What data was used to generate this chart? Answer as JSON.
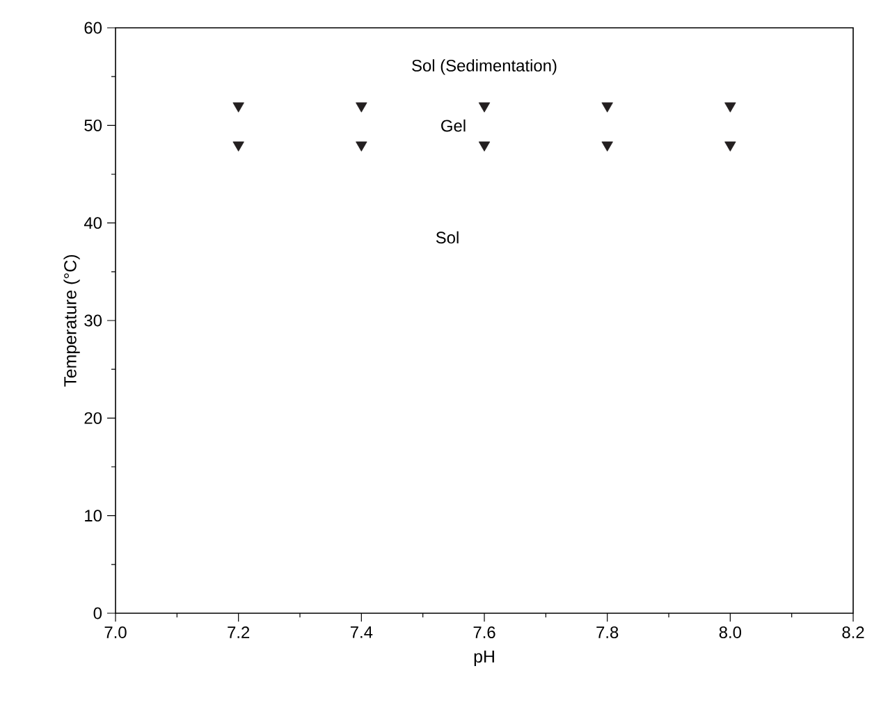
{
  "chart_data": {
    "type": "scatter",
    "xlabel": "pH",
    "ylabel": "Temperature (°C)",
    "marker": "triangle",
    "series": [
      {
        "color": "#231f20",
        "x": [
          7.2,
          7.4,
          7.6,
          7.8,
          8.0
        ],
        "values": [
          52,
          52,
          52,
          52,
          52
        ]
      },
      {
        "color": "#231f20",
        "x": [
          7.2,
          7.4,
          7.6,
          7.8,
          8.0
        ],
        "values": [
          48,
          48,
          48,
          48,
          48
        ]
      }
    ],
    "xlim": [
      7.0,
      8.2
    ],
    "xticks": [
      {
        "value": 7.0,
        "label": "7.0"
      },
      {
        "value": 7.1,
        "label": null
      },
      {
        "value": 7.2,
        "label": "7.2"
      },
      {
        "value": 7.3,
        "label": null
      },
      {
        "value": 7.4,
        "label": "7.4"
      },
      {
        "value": 7.5,
        "label": null
      },
      {
        "value": 7.6,
        "label": "7.6"
      },
      {
        "value": 7.7,
        "label": null
      },
      {
        "value": 7.8,
        "label": "7.8"
      },
      {
        "value": 7.9,
        "label": null
      },
      {
        "value": 8.0,
        "label": "8.0"
      },
      {
        "value": 8.1,
        "label": null
      },
      {
        "value": 8.2,
        "label": "8.2"
      }
    ],
    "ylim": [
      0,
      60
    ],
    "yticks": [
      0,
      {
        "value": 5,
        "label": null
      },
      10,
      {
        "value": 15,
        "label": null
      },
      20,
      {
        "value": 25,
        "label": null
      },
      30,
      {
        "value": 35,
        "label": null
      },
      40,
      {
        "value": 45,
        "label": null
      },
      50,
      {
        "value": 55,
        "label": null
      },
      60
    ],
    "annotations": [
      "Sol (Sedimentation)",
      "Gel",
      "Sol"
    ]
  }
}
